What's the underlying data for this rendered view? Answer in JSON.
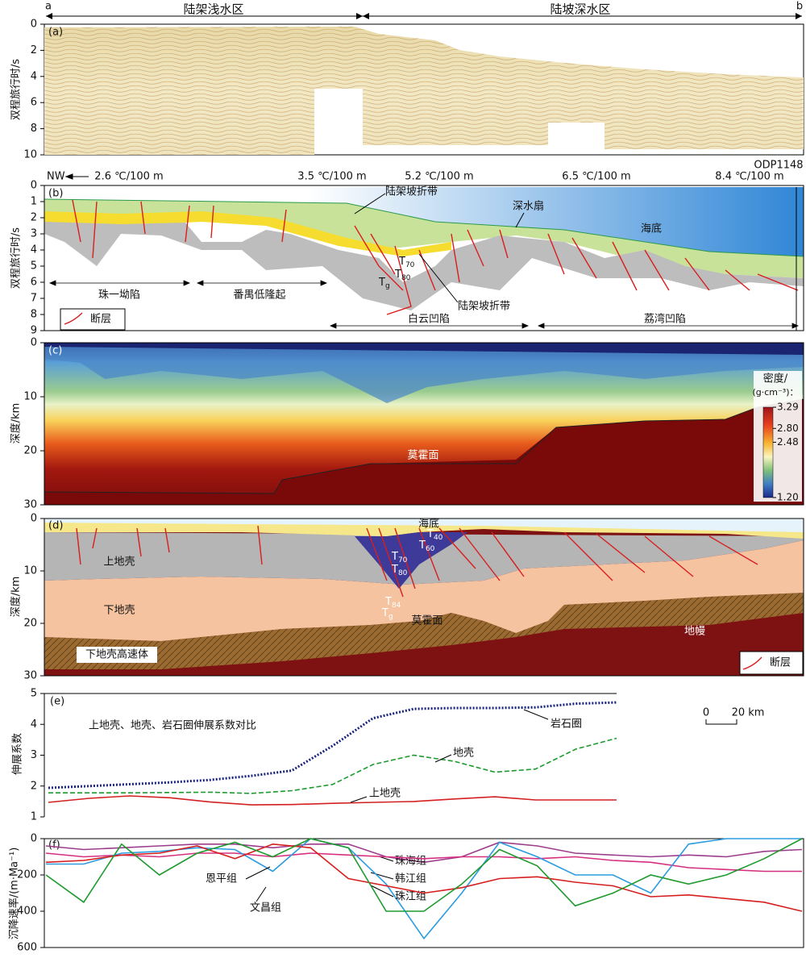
{
  "header": {
    "left_end": "a",
    "right_end": "b",
    "zones": [
      "陆架浅水区",
      "陆坡深水区"
    ]
  },
  "panel_a": {
    "label": "(a)",
    "ylabel": "双程旅行时/s",
    "ylim": [
      0,
      10
    ],
    "yticks": [
      0,
      2,
      4,
      6,
      8,
      10
    ]
  },
  "panel_b": {
    "label": "(b)",
    "ylabel": "双程旅行时/s",
    "ylim": [
      0,
      9
    ],
    "yticks": [
      0,
      1,
      2,
      3,
      4,
      5,
      6,
      7,
      8,
      9
    ],
    "direction": "NW",
    "gradients": [
      "2.6 ℃/100 m",
      "3.5 ℃/100 m",
      "5.2 ℃/100 m",
      "6.5 ℃/100 m",
      "8.4 ℃/100 m"
    ],
    "well": "ODP1148",
    "annotations": [
      "陆架坡折带",
      "深水扇",
      "海底",
      "陆架坡折带"
    ],
    "horizons": [
      {
        "base": "T",
        "sub": "70"
      },
      {
        "base": "T",
        "sub": "80"
      },
      {
        "base": "T",
        "sub": "g"
      }
    ],
    "units": [
      "珠一坳陷",
      "番禺低隆起",
      "白云凹陷",
      "荔湾凹陷"
    ],
    "legend": "断层"
  },
  "panel_c": {
    "label": "(c)",
    "ylabel": "深度/km",
    "ylim": [
      0,
      30
    ],
    "yticks": [
      0,
      10,
      20,
      30
    ],
    "annotation": "莫霍面",
    "colorbar_title": [
      "密度/",
      "(g·cm⁻³)："
    ],
    "clim": [
      1.2,
      3.29
    ],
    "cticks": [
      3.29,
      {
        "value": 2.8,
        "label": "2.80"
      },
      2.48,
      {
        "value": 1.2,
        "label": "1.20"
      }
    ]
  },
  "panel_d": {
    "label": "(d)",
    "ylabel": "深度/km",
    "ylim": [
      0,
      30
    ],
    "yticks": [
      0,
      10,
      20,
      30
    ],
    "annotations": [
      "海底",
      "上地壳",
      "下地壳",
      "下地壳高速体",
      "莫霍面",
      "地幔"
    ],
    "horizons": [
      {
        "base": "T",
        "sub": "40"
      },
      {
        "base": "T",
        "sub": "60"
      },
      {
        "base": "T",
        "sub": "70"
      },
      {
        "base": "T",
        "sub": "80"
      },
      {
        "base": "T",
        "sub": "84"
      },
      {
        "base": "T",
        "sub": "g"
      }
    ],
    "legend": "断层"
  },
  "chart_data": [
    {
      "type": "line",
      "label": "(e)",
      "title": "上地壳、地壳、岩石圈伸展系数对比",
      "ylabel": "伸展系数",
      "ylim": [
        1,
        5
      ],
      "yticks": [
        1,
        2,
        3,
        4,
        5
      ],
      "scale_bar": [
        "0",
        "20 km"
      ],
      "series": [
        {
          "name": "岩石圈",
          "color": "#1a237e",
          "style": "dotted",
          "values": [
            1.94,
            2.0,
            2.06,
            2.12,
            2.2,
            2.33,
            2.5,
            3.3,
            4.2,
            4.5,
            4.53,
            4.53,
            4.55,
            4.67,
            4.71
          ]
        },
        {
          "name": "地壳",
          "color": "#1b9a2e",
          "style": "dashed",
          "values": [
            1.78,
            1.78,
            1.78,
            1.79,
            1.8,
            1.76,
            1.85,
            2.05,
            2.7,
            3.0,
            2.8,
            2.45,
            2.55,
            3.2,
            3.55
          ]
        },
        {
          "name": "上地壳",
          "color": "#d32020",
          "style": "solid",
          "values": [
            1.47,
            1.6,
            1.68,
            1.62,
            1.48,
            1.39,
            1.4,
            1.44,
            1.47,
            1.5,
            1.58,
            1.65,
            1.55,
            1.55,
            1.55
          ]
        }
      ]
    },
    {
      "type": "line",
      "label": "(f)",
      "ylabel": "沉降速率/(m·Ma⁻¹)",
      "ylim": [
        0,
        600
      ],
      "yticks": [
        0,
        200,
        400,
        600
      ],
      "series": [
        {
          "name": "珠海组",
          "color": "#9c3d8c",
          "values": [
            40,
            60,
            50,
            40,
            30,
            30,
            50,
            30,
            30,
            100,
            130,
            100,
            20,
            40,
            80,
            90,
            100,
            90,
            100,
            70,
            60
          ]
        },
        {
          "name": "韩江组",
          "color": "#d62f7f",
          "values": [
            80,
            100,
            90,
            100,
            80,
            80,
            100,
            80,
            90,
            100,
            110,
            100,
            100,
            110,
            100,
            120,
            130,
            160,
            170,
            180,
            180
          ]
        },
        {
          "name": "珠江组",
          "color": "#2c9be0",
          "values": [
            140,
            140,
            80,
            70,
            50,
            60,
            180,
            0,
            50,
            250,
            550,
            300,
            20,
            100,
            200,
            200,
            300,
            30,
            0,
            0,
            0
          ]
        },
        {
          "name": "恩平组",
          "color": "#d61e1e",
          "values": [
            130,
            120,
            90,
            80,
            40,
            110,
            30,
            50,
            220,
            260,
            300,
            270,
            220,
            210,
            240,
            260,
            320,
            310,
            330,
            350,
            400
          ]
        },
        {
          "name": "文昌组",
          "color": "#1e9a2e",
          "values": [
            200,
            350,
            30,
            200,
            80,
            20,
            100,
            0,
            50,
            400,
            400,
            250,
            60,
            150,
            370,
            300,
            200,
            250,
            200,
            110,
            0
          ]
        }
      ]
    }
  ]
}
